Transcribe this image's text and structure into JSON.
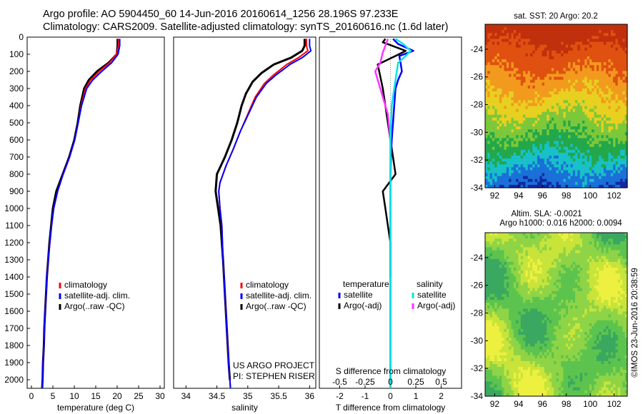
{
  "header": {
    "line1": "Argo profile: AO 5904450_60 14-Jun-2016 20160614_1256 28.196S 97.233E",
    "line2": "Climatology: CARS2009. Satellite-adjusted climatology: synTS_20160616.nc (1.6d later)"
  },
  "colors": {
    "climatology": "#ff0000",
    "satellite": "#0000ff",
    "argo": "#000000",
    "salinity_satellite": "#00e5e5",
    "salinity_argo": "#ff33ff"
  },
  "chart_data": [
    {
      "type": "line",
      "id": "temperature",
      "xlabel": "temperature (deg C)",
      "xlim": [
        -1,
        31
      ],
      "xticks": [
        0,
        5,
        10,
        15,
        20,
        25,
        30
      ],
      "ylim": [
        0,
        2050
      ],
      "yticks": [
        0,
        100,
        200,
        300,
        400,
        500,
        600,
        700,
        800,
        900,
        1000,
        1100,
        1200,
        1300,
        1400,
        1500,
        1600,
        1700,
        1800,
        1900,
        2000
      ],
      "legend": [
        "climatology",
        "satellite-adj. clim.",
        "Argo(..raw -QC)"
      ],
      "series": [
        {
          "name": "climatology",
          "points": [
            [
              20.3,
              10
            ],
            [
              20.3,
              50
            ],
            [
              19.8,
              100
            ],
            [
              18.2,
              150
            ],
            [
              15.8,
              200
            ],
            [
              13.8,
              250
            ],
            [
              12.6,
              300
            ],
            [
              11.6,
              400
            ],
            [
              10.9,
              500
            ],
            [
              10.1,
              600
            ],
            [
              8.9,
              700
            ],
            [
              7.4,
              800
            ],
            [
              6.1,
              900
            ],
            [
              5.2,
              1000
            ],
            [
              4.7,
              1100
            ],
            [
              4.3,
              1200
            ],
            [
              3.9,
              1300
            ],
            [
              3.6,
              1400
            ],
            [
              3.4,
              1500
            ],
            [
              3.2,
              1600
            ],
            [
              3.0,
              1700
            ],
            [
              2.9,
              1800
            ],
            [
              2.7,
              1900
            ],
            [
              2.6,
              2000
            ],
            [
              2.5,
              2050
            ]
          ]
        },
        {
          "name": "satellite-adj. clim.",
          "points": [
            [
              20.6,
              10
            ],
            [
              20.6,
              50
            ],
            [
              20.2,
              100
            ],
            [
              18.7,
              150
            ],
            [
              16.4,
              200
            ],
            [
              14.3,
              250
            ],
            [
              12.9,
              300
            ],
            [
              11.7,
              400
            ],
            [
              10.9,
              500
            ],
            [
              10.1,
              600
            ],
            [
              8.9,
              700
            ],
            [
              7.4,
              800
            ],
            [
              6.1,
              900
            ],
            [
              5.2,
              1000
            ],
            [
              4.7,
              1100
            ],
            [
              4.3,
              1200
            ],
            [
              3.9,
              1300
            ],
            [
              3.6,
              1400
            ],
            [
              3.4,
              1500
            ],
            [
              3.2,
              1600
            ],
            [
              3.0,
              1700
            ],
            [
              2.9,
              1800
            ],
            [
              2.7,
              1900
            ],
            [
              2.6,
              2000
            ],
            [
              2.5,
              2050
            ]
          ]
        },
        {
          "name": "Argo(..raw -QC)",
          "points": [
            [
              20.1,
              10
            ],
            [
              20.1,
              50
            ],
            [
              19.9,
              100
            ],
            [
              18.0,
              150
            ],
            [
              15.3,
              200
            ],
            [
              13.4,
              250
            ],
            [
              12.3,
              300
            ],
            [
              11.4,
              400
            ],
            [
              10.8,
              500
            ],
            [
              10.0,
              600
            ],
            [
              8.8,
              700
            ],
            [
              7.3,
              800
            ],
            [
              5.8,
              900
            ],
            [
              5.0,
              1000
            ],
            [
              4.6,
              1100
            ],
            [
              4.2,
              1200
            ],
            [
              3.9,
              1300
            ],
            [
              3.6,
              1400
            ],
            [
              3.4,
              1500
            ],
            [
              3.2,
              1600
            ],
            [
              3.0,
              1700
            ],
            [
              2.9,
              1800
            ],
            [
              2.7,
              1900
            ],
            [
              2.6,
              2000
            ],
            [
              2.5,
              2050
            ]
          ]
        }
      ]
    },
    {
      "type": "line",
      "id": "salinity",
      "xlabel": "salinity",
      "xlim": [
        33.8,
        36.1
      ],
      "xticks": [
        34,
        34.5,
        35,
        35.5,
        36
      ],
      "ylim": [
        0,
        2050
      ],
      "legend": [
        "climatology",
        "satellite-adj. clim.",
        "Argo(..raw -QC)"
      ],
      "annotation": [
        "US ARGO PROJECT",
        "PI: STEPHEN RISER"
      ],
      "series": [
        {
          "name": "climatology",
          "points": [
            [
              35.95,
              10
            ],
            [
              35.95,
              50
            ],
            [
              35.97,
              80
            ],
            [
              35.82,
              120
            ],
            [
              35.63,
              160
            ],
            [
              35.42,
              220
            ],
            [
              35.27,
              270
            ],
            [
              35.12,
              350
            ],
            [
              35.0,
              450
            ],
            [
              34.88,
              550
            ],
            [
              34.77,
              650
            ],
            [
              34.65,
              750
            ],
            [
              34.55,
              850
            ],
            [
              34.53,
              900
            ],
            [
              34.55,
              1000
            ],
            [
              34.58,
              1100
            ],
            [
              34.6,
              1300
            ],
            [
              34.63,
              1500
            ],
            [
              34.66,
              1700
            ],
            [
              34.69,
              1900
            ],
            [
              34.71,
              2000
            ],
            [
              34.72,
              2050
            ]
          ]
        },
        {
          "name": "satellite-adj. clim.",
          "points": [
            [
              36.0,
              10
            ],
            [
              36.0,
              50
            ],
            [
              36.02,
              80
            ],
            [
              35.88,
              120
            ],
            [
              35.68,
              160
            ],
            [
              35.46,
              220
            ],
            [
              35.3,
              270
            ],
            [
              35.14,
              350
            ],
            [
              35.01,
              450
            ],
            [
              34.88,
              550
            ],
            [
              34.77,
              650
            ],
            [
              34.65,
              750
            ],
            [
              34.55,
              850
            ],
            [
              34.53,
              900
            ],
            [
              34.55,
              1000
            ],
            [
              34.58,
              1100
            ],
            [
              34.6,
              1300
            ],
            [
              34.63,
              1500
            ],
            [
              34.66,
              1700
            ],
            [
              34.69,
              1900
            ],
            [
              34.71,
              2000
            ],
            [
              34.72,
              2050
            ]
          ]
        },
        {
          "name": "Argo(..raw -QC)",
          "points": [
            [
              35.92,
              10
            ],
            [
              35.92,
              50
            ],
            [
              35.88,
              80
            ],
            [
              35.7,
              120
            ],
            [
              35.42,
              160
            ],
            [
              35.22,
              210
            ],
            [
              35.08,
              260
            ],
            [
              34.97,
              330
            ],
            [
              34.9,
              400
            ],
            [
              34.83,
              500
            ],
            [
              34.74,
              600
            ],
            [
              34.63,
              700
            ],
            [
              34.5,
              800
            ],
            [
              34.48,
              900
            ],
            [
              34.52,
              1000
            ],
            [
              34.56,
              1100
            ],
            [
              34.6,
              1300
            ],
            [
              34.63,
              1500
            ],
            [
              34.66,
              1700
            ],
            [
              34.69,
              1900
            ],
            [
              34.71,
              2000
            ]
          ]
        }
      ]
    },
    {
      "type": "line",
      "id": "difference",
      "xlabel": "T difference from climatology",
      "xlabel_top": "S difference from climatology",
      "xlim": [
        -2.8,
        2.8
      ],
      "xticks": [
        -2,
        -1,
        0,
        1,
        2
      ],
      "sticks": [
        "-0.5",
        "-0.25",
        "0",
        "0.25",
        "0.5"
      ],
      "ylim": [
        0,
        2050
      ],
      "legend_headers": [
        "temperature",
        "salinity"
      ],
      "legend": [
        "satellite",
        "Argo(-adj)",
        "satellite",
        "Argo(-adj)"
      ],
      "series": [
        {
          "name": "T satellite",
          "points": [
            [
              0.1,
              10
            ],
            [
              0.3,
              40
            ],
            [
              0.9,
              80
            ],
            [
              0.35,
              110
            ],
            [
              0.4,
              150
            ],
            [
              0.45,
              200
            ],
            [
              0.3,
              250
            ],
            [
              0.2,
              300
            ],
            [
              0.15,
              400
            ],
            [
              0.1,
              500
            ],
            [
              0.05,
              600
            ],
            [
              0.02,
              700
            ],
            [
              0,
              800
            ],
            [
              0,
              1000
            ],
            [
              0,
              1500
            ],
            [
              0,
              2050
            ]
          ]
        },
        {
          "name": "T Argo(-adj)",
          "points": [
            [
              -0.2,
              10
            ],
            [
              -0.3,
              30
            ],
            [
              0.6,
              80
            ],
            [
              0.2,
              110
            ],
            [
              -0.5,
              160
            ],
            [
              -0.4,
              230
            ],
            [
              -0.3,
              300
            ],
            [
              -0.2,
              400
            ],
            [
              -0.1,
              500
            ],
            [
              0,
              600
            ],
            [
              0.1,
              700
            ],
            [
              0.2,
              800
            ],
            [
              -0.3,
              900
            ],
            [
              -0.2,
              1000
            ],
            [
              -0.1,
              1100
            ],
            [
              0,
              1200
            ],
            [
              0,
              1400
            ]
          ]
        },
        {
          "name": "S satellite",
          "points": [
            [
              0.2,
              10
            ],
            [
              0.5,
              40
            ],
            [
              0.8,
              80
            ],
            [
              0.6,
              110
            ],
            [
              0.3,
              150
            ],
            [
              0.2,
              250
            ],
            [
              0.05,
              400
            ],
            [
              0,
              600
            ],
            [
              0,
              1000
            ],
            [
              0,
              2050
            ]
          ]
        },
        {
          "name": "S Argo(-adj)",
          "points": [
            [
              -0.1,
              10
            ],
            [
              -0.2,
              50
            ],
            [
              -0.3,
              90
            ],
            [
              -0.4,
              150
            ],
            [
              -0.6,
              200
            ],
            [
              -0.5,
              250
            ],
            [
              -0.4,
              300
            ],
            [
              -0.1,
              450
            ],
            [
              0,
              600
            ],
            [
              0,
              800
            ]
          ]
        }
      ]
    },
    {
      "type": "heatmap",
      "id": "sst-map",
      "title": "sat. SST: 20 Argo: 20.2",
      "xlim": [
        91.2,
        103.1
      ],
      "xticks": [
        92,
        94,
        96,
        98,
        100,
        102
      ],
      "ylim": [
        -34,
        -22.2
      ],
      "yticks": [
        -24,
        -26,
        -28,
        -30,
        -32,
        -34
      ]
    },
    {
      "type": "heatmap",
      "id": "sla-map",
      "title": "Altim. SLA: -0.0021",
      "subtitle": "Argo h1000: 0.016 h2000: 0.0094",
      "xlim": [
        91.2,
        103.1
      ],
      "xticks": [
        92,
        94,
        96,
        98,
        100,
        102
      ],
      "ylim": [
        -34,
        -22.2
      ],
      "yticks": [
        -24,
        -26,
        -28,
        -30,
        -32,
        -34
      ],
      "side_label": "©IMOS 23-Jun-2016 20:38:59"
    }
  ]
}
